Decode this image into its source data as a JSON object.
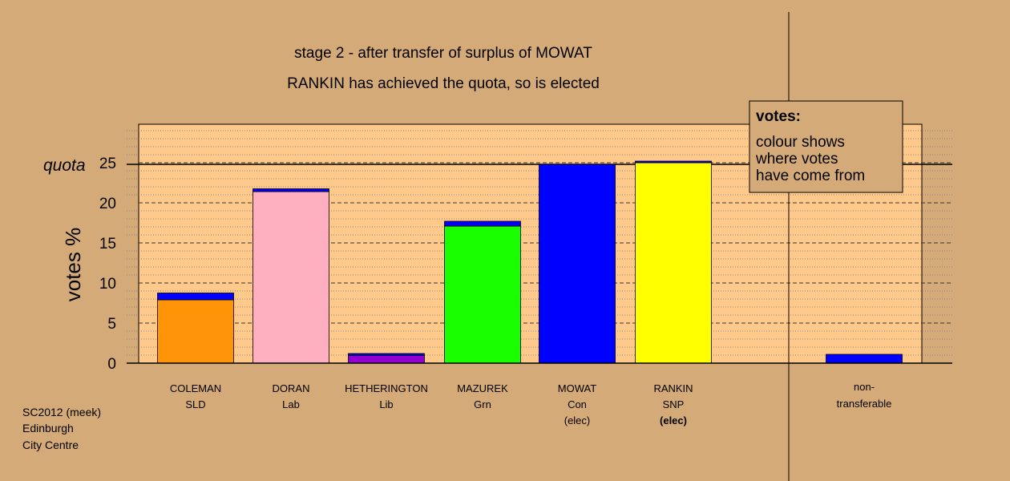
{
  "chart_data": {
    "type": "bar",
    "title_lines": [
      "stage 2 - after transfer of surplus of MOWAT",
      "RANKIN has achieved the quota, so is elected"
    ],
    "ylabel": "votes %",
    "ylim": [
      0,
      30
    ],
    "yticks": [
      0,
      5,
      10,
      15,
      20,
      25
    ],
    "quota": {
      "label": "quota",
      "value": 24.8
    },
    "grid": true,
    "categories": [
      {
        "name": "COLEMAN",
        "party": "SLD",
        "status": "",
        "status_bold": false,
        "segments": [
          {
            "value": 7.9,
            "color": "#ff9408"
          },
          {
            "value": 0.85,
            "color": "#0000ff"
          }
        ]
      },
      {
        "name": "DORAN",
        "party": "Lab",
        "status": "",
        "status_bold": false,
        "segments": [
          {
            "value": 21.4,
            "color": "#ffb0c0"
          },
          {
            "value": 0.35,
            "color": "#0000ff"
          }
        ]
      },
      {
        "name": "HETHERINGTON",
        "party": "Lib",
        "status": "",
        "status_bold": false,
        "segments": [
          {
            "value": 0.95,
            "color": "#9400d3"
          },
          {
            "value": 0.25,
            "color": "#0000ff"
          }
        ]
      },
      {
        "name": "MAZUREK",
        "party": "Grn",
        "status": "",
        "status_bold": false,
        "segments": [
          {
            "value": 17.1,
            "color": "#1aff00"
          },
          {
            "value": 0.6,
            "color": "#0000ff"
          }
        ]
      },
      {
        "name": "MOWAT",
        "party": "Con",
        "status": "(elec)",
        "status_bold": false,
        "segments": [
          {
            "value": 24.8,
            "color": "#0000ff"
          }
        ]
      },
      {
        "name": "RANKIN",
        "party": "SNP",
        "status": "(elec)",
        "status_bold": true,
        "segments": [
          {
            "value": 25.0,
            "color": "#ffff00"
          },
          {
            "value": 0.2,
            "color": "#0000ff"
          }
        ]
      }
    ],
    "non_transferable": {
      "label_lines": [
        "non-",
        "transferable"
      ],
      "segments": [
        {
          "value": 1.1,
          "color": "#0000ff"
        }
      ]
    },
    "legend": {
      "title": "votes:",
      "lines": [
        "colour shows",
        "where votes",
        "have come from"
      ]
    },
    "footer": [
      "SC2012 (meek)",
      "Edinburgh",
      "City Centre"
    ],
    "colors": {
      "background": "#d4aa78",
      "plot_area": "#ffc98c",
      "legend_bg": "#d4aa78"
    }
  }
}
